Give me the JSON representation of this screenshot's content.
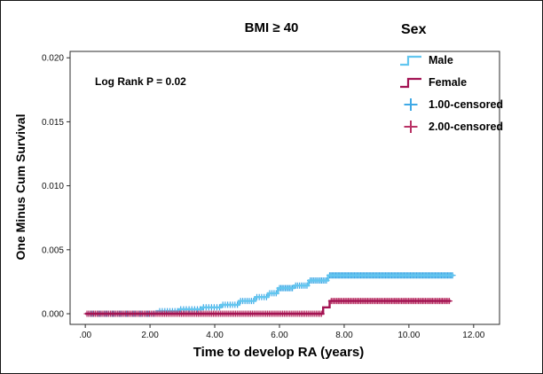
{
  "chart_data": {
    "type": "line",
    "title": "BMI ≥ 40",
    "xlabel": "Time to develop RA (years)",
    "ylabel": "One Minus Cum Survival",
    "annotation": "Log Rank P = 0.02",
    "legend": {
      "title": "Sex",
      "items": [
        {
          "label": "Male",
          "symbol": "step",
          "color": "#62c6ef"
        },
        {
          "label": "Female",
          "symbol": "step",
          "color": "#a31353"
        },
        {
          "label": "1.00-censored",
          "symbol": "plus",
          "color": "#3fa9e6"
        },
        {
          "label": "2.00-censored",
          "symbol": "plus",
          "color": "#b93265"
        }
      ]
    },
    "axes": {
      "xlim": [
        -0.47,
        12.8
      ],
      "ylim": [
        -0.00083,
        0.0205
      ],
      "xticks": [
        {
          "v": 0,
          "label": ".00"
        },
        {
          "v": 2,
          "label": "2.00"
        },
        {
          "v": 4,
          "label": "4.00"
        },
        {
          "v": 6,
          "label": "6.00"
        },
        {
          "v": 8,
          "label": "8.00"
        },
        {
          "v": 10,
          "label": "10.00"
        },
        {
          "v": 12,
          "label": "12.00"
        }
      ],
      "yticks": [
        {
          "v": 0,
          "label": "0.000"
        },
        {
          "v": 0.005,
          "label": "0.005"
        },
        {
          "v": 0.01,
          "label": "0.010"
        },
        {
          "v": 0.015,
          "label": "0.015"
        },
        {
          "v": 0.02,
          "label": "0.020"
        }
      ],
      "grid": false
    },
    "series": [
      {
        "name": "Male",
        "color": "#62c6ef",
        "points": [
          [
            0,
            0
          ],
          [
            2.2,
            0
          ],
          [
            2.2,
            0.0002
          ],
          [
            2.9,
            0.0002
          ],
          [
            2.9,
            0.00035
          ],
          [
            3.6,
            0.00035
          ],
          [
            3.6,
            0.0005
          ],
          [
            4.2,
            0.0005
          ],
          [
            4.2,
            0.0007
          ],
          [
            4.75,
            0.0007
          ],
          [
            4.75,
            0.001
          ],
          [
            5.25,
            0.001
          ],
          [
            5.25,
            0.0013
          ],
          [
            5.65,
            0.0013
          ],
          [
            5.65,
            0.0016
          ],
          [
            5.95,
            0.0016
          ],
          [
            5.95,
            0.002
          ],
          [
            6.45,
            0.002
          ],
          [
            6.45,
            0.0022
          ],
          [
            6.9,
            0.0022
          ],
          [
            6.9,
            0.0026
          ],
          [
            7.5,
            0.0026
          ],
          [
            7.5,
            0.003
          ],
          [
            11.4,
            0.003
          ]
        ]
      },
      {
        "name": "Female",
        "color": "#a31353",
        "points": [
          [
            0,
            0
          ],
          [
            7.35,
            0
          ],
          [
            7.35,
            0.0005
          ],
          [
            7.55,
            0.0005
          ],
          [
            7.55,
            0.001
          ],
          [
            11.3,
            0.001
          ]
        ]
      }
    ],
    "censored": [
      {
        "name": "1.00-censored",
        "color": "#3fa9e6",
        "clusters": [
          [
            0.1,
            2.1,
            30,
            0.0
          ],
          [
            2.3,
            2.85,
            8,
            0.0002
          ],
          [
            2.95,
            3.55,
            8,
            0.00035
          ],
          [
            3.65,
            4.15,
            7,
            0.0005
          ],
          [
            4.25,
            4.7,
            7,
            0.0007
          ],
          [
            4.8,
            5.2,
            7,
            0.001
          ],
          [
            5.3,
            5.6,
            5,
            0.0013
          ],
          [
            5.7,
            5.9,
            4,
            0.0016
          ],
          [
            6.0,
            6.4,
            10,
            0.002
          ],
          [
            6.5,
            6.85,
            7,
            0.0022
          ],
          [
            6.95,
            7.45,
            11,
            0.0026
          ],
          [
            7.55,
            11.35,
            100,
            0.003
          ]
        ]
      },
      {
        "name": "2.00-censored",
        "color": "#b93265",
        "clusters": [
          [
            0.05,
            7.3,
            140,
            0.0
          ],
          [
            7.6,
            11.25,
            85,
            0.001
          ]
        ]
      }
    ]
  }
}
